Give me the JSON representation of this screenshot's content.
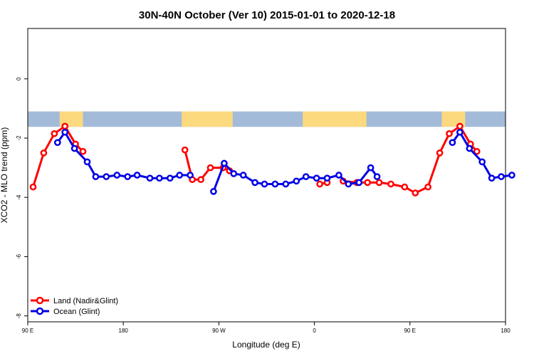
{
  "chart_data": {
    "type": "line",
    "title": "30N-40N October (Ver 10)   2015-01-01 to 2020-12-18",
    "xlabel": "Longitude (deg E)",
    "ylabel": "XCO2 - MLO trend (ppm)",
    "x_ticks": [
      {
        "value": 90,
        "label": "90 E"
      },
      {
        "value": 180,
        "label": "180"
      },
      {
        "value": 270,
        "label": "90 W"
      },
      {
        "value": 360,
        "label": "0"
      },
      {
        "value": 450,
        "label": "90 E"
      },
      {
        "value": 540,
        "label": "180"
      }
    ],
    "y_ticks": [
      {
        "value": 0,
        "label": "0"
      },
      {
        "value": -2,
        "label": "-2"
      },
      {
        "value": -4,
        "label": "-4"
      },
      {
        "value": -6,
        "label": "-6"
      },
      {
        "value": -8,
        "label": "-8"
      }
    ],
    "xlim": [
      90,
      540
    ],
    "ylim": [
      -8.2,
      1.7
    ],
    "grid": false,
    "legend_position": "bottom-left",
    "map_strip": {
      "y_top": -1.1,
      "y_bottom": -1.62,
      "ocean_color": "#a3bbd9",
      "land_color": "#fcd97e"
    },
    "land_segments": [
      {
        "lon_start": 120,
        "lon_end": 142
      },
      {
        "lon_start": 235,
        "lon_end": 283
      },
      {
        "lon_start": 349,
        "lon_end": 409
      },
      {
        "lon_start": 480,
        "lon_end": 502
      }
    ],
    "series": [
      {
        "name": "Land (Nadir&Glint)",
        "color": "#ff0000",
        "segments": [
          [
            [
              95,
              -3.65
            ],
            [
              105,
              -2.5
            ],
            [
              115,
              -1.85
            ],
            [
              125,
              -1.6
            ],
            [
              135,
              -2.2
            ],
            [
              142,
              -2.45
            ]
          ],
          [
            [
              238,
              -2.4
            ],
            [
              245,
              -3.4
            ],
            [
              253,
              -3.4
            ],
            [
              262,
              -3.0
            ],
            [
              274,
              -3.0
            ],
            [
              280,
              -3.1
            ]
          ],
          [
            [
              365,
              -3.55
            ],
            [
              372,
              -3.5
            ]
          ],
          [
            [
              387,
              -3.45
            ],
            [
              400,
              -3.5
            ],
            [
              410,
              -3.5
            ],
            [
              421,
              -3.5
            ],
            [
              432,
              -3.55
            ],
            [
              445,
              -3.65
            ],
            [
              455,
              -3.85
            ],
            [
              467,
              -3.65
            ],
            [
              478,
              -2.5
            ],
            [
              487,
              -1.85
            ],
            [
              497,
              -1.6
            ],
            [
              507,
              -2.2
            ],
            [
              513,
              -2.45
            ]
          ]
        ]
      },
      {
        "name": "Ocean (Glint)",
        "color": "#0000e6",
        "segments": [
          [
            [
              118,
              -2.15
            ],
            [
              125,
              -1.8
            ],
            [
              134,
              -2.35
            ],
            [
              146,
              -2.8
            ],
            [
              154,
              -3.3
            ],
            [
              164,
              -3.3
            ],
            [
              174,
              -3.25
            ],
            [
              184,
              -3.3
            ],
            [
              193,
              -3.25
            ],
            [
              205,
              -3.35
            ],
            [
              214,
              -3.35
            ],
            [
              224,
              -3.35
            ],
            [
              233,
              -3.25
            ],
            [
              243,
              -3.25
            ]
          ],
          [
            [
              265,
              -3.8
            ],
            [
              275,
              -2.85
            ],
            [
              284,
              -3.2
            ],
            [
              293,
              -3.25
            ],
            [
              304,
              -3.5
            ],
            [
              313,
              -3.55
            ],
            [
              323,
              -3.55
            ],
            [
              333,
              -3.55
            ],
            [
              343,
              -3.45
            ],
            [
              352,
              -3.3
            ],
            [
              362,
              -3.35
            ],
            [
              372,
              -3.35
            ],
            [
              383,
              -3.25
            ],
            [
              392,
              -3.55
            ],
            [
              402,
              -3.5
            ],
            [
              413,
              -3.0
            ],
            [
              419,
              -3.3
            ]
          ],
          [
            [
              490,
              -2.15
            ],
            [
              497,
              -1.8
            ],
            [
              506,
              -2.35
            ],
            [
              518,
              -2.8
            ],
            [
              527,
              -3.35
            ],
            [
              536,
              -3.3
            ],
            [
              546,
              -3.25
            ]
          ]
        ]
      }
    ]
  }
}
